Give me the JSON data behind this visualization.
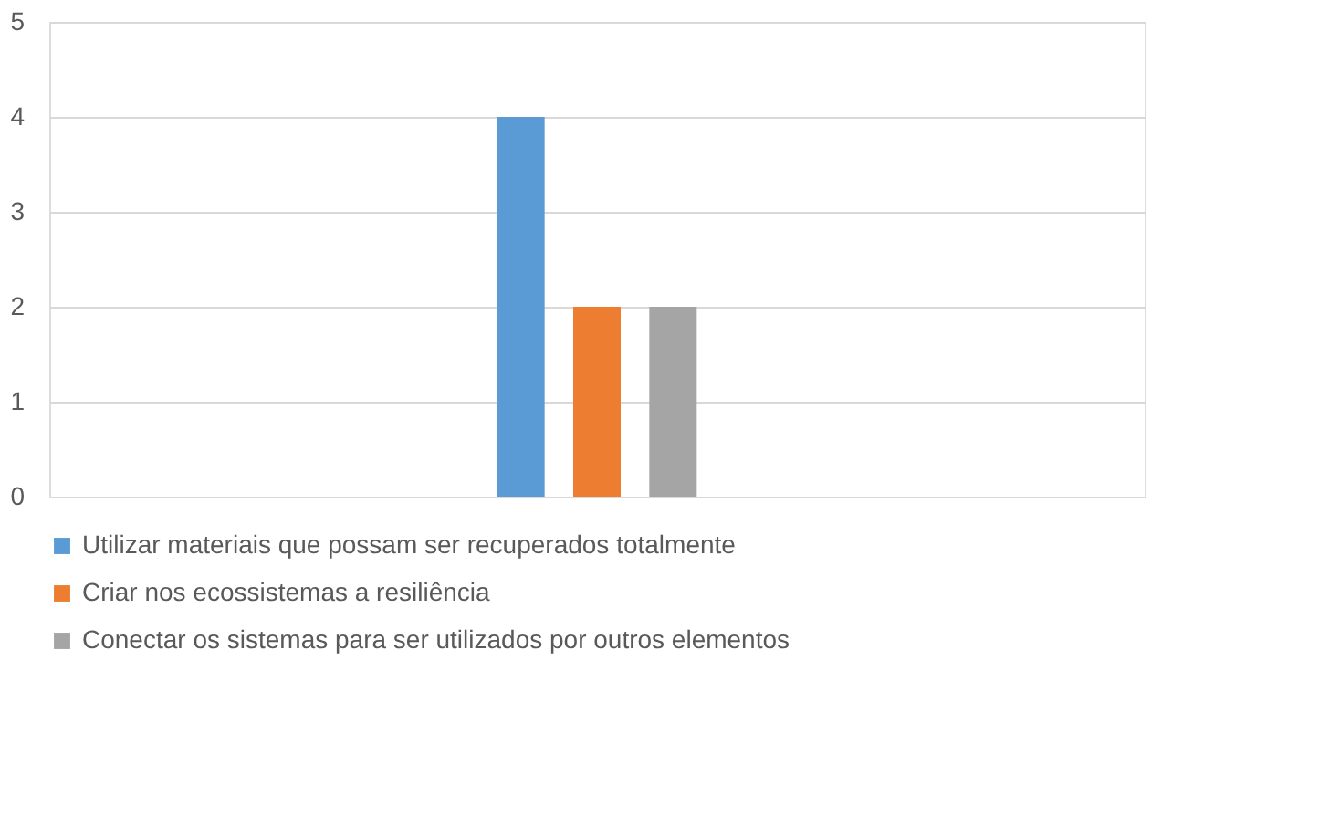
{
  "chart_data": {
    "type": "bar",
    "categories": [
      null
    ],
    "series": [
      {
        "name": "Utilizar materiais que possam ser recuperados totalmente",
        "color": "#5b9bd5",
        "values": [
          4
        ]
      },
      {
        "name": "Criar nos ecossistemas a resiliência",
        "color": "#ed7d31",
        "values": [
          2
        ]
      },
      {
        "name": "Conectar os sistemas para  ser utilizados por outros elementos",
        "color": "#a5a5a5",
        "values": [
          2
        ]
      }
    ],
    "ylim": [
      0,
      5
    ],
    "yticks": [
      0,
      1,
      2,
      3,
      4,
      5
    ],
    "grid": "y",
    "legend": "bottom"
  }
}
